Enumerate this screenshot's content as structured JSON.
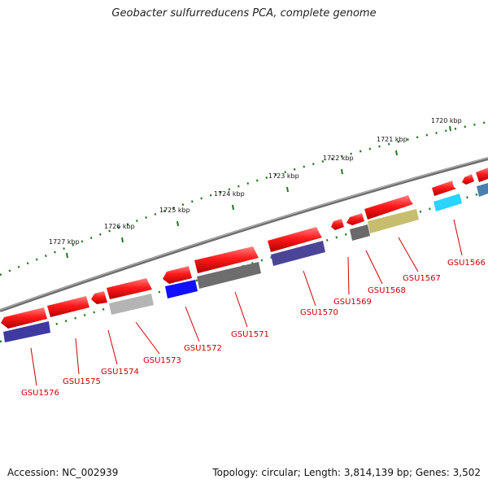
{
  "title": "Geobacter sulfurreducens PCA, complete genome",
  "footer": {
    "accession": "Accession: NC_002939",
    "stats": "Topology: circular; Length: 3,814,139 bp; Genes: 3,502"
  },
  "colors": {
    "backbone": "#8a8a8a",
    "ticks": "#1d7a1d",
    "label": "#cc0000"
  },
  "kbp_labels": [
    "1720 kbp",
    "1721 kbp",
    "1722 kbp",
    "1723 kbp",
    "1724 kbp",
    "1725 kbp",
    "1726 kbp",
    "1727 kbp"
  ],
  "gene_labels": [
    "GSU1566",
    "GSU1567",
    "GSU1568",
    "GSU1569",
    "GSU1570",
    "GSU1571",
    "GSU1572",
    "GSU1573",
    "GSU1574",
    "GSU1575",
    "GSU1576"
  ],
  "genes": [
    {
      "strand": "+",
      "color": "#ff1a1a"
    },
    {
      "strand": "+",
      "color": "#ff1a1a"
    },
    {
      "strand": "-",
      "color": "#ff1a1a"
    },
    {
      "strand": "+",
      "color": "#ff1a1a"
    },
    {
      "strand": "-",
      "color": "#ff1a1a"
    },
    {
      "strand": "-",
      "color": "#ff1a1a"
    },
    {
      "strand": "-",
      "color": "#ff1a1a"
    },
    {
      "strand": "+",
      "color": "#ff1a1a"
    },
    {
      "strand": "-",
      "color": "#ff1a1a"
    },
    {
      "strand": "+",
      "color": "#ff1a1a"
    },
    {
      "strand": "-",
      "color": "#ff1a1a"
    },
    {
      "strand": "-",
      "color": "#ff1a1a"
    },
    {
      "strand": "+",
      "color": "#ff1a1a"
    }
  ],
  "features": [
    {
      "color": "#2bd3ff"
    },
    {
      "color": "#4a7fb0"
    },
    {
      "color": "#c7bd6e"
    },
    {
      "color": "#6a6a6a"
    },
    {
      "color": "#4b4598"
    },
    {
      "color": "#6d6d6d"
    },
    {
      "color": "#1010ff"
    },
    {
      "color": "#b4b4b4"
    },
    {
      "color": "#3e3aa0"
    }
  ]
}
